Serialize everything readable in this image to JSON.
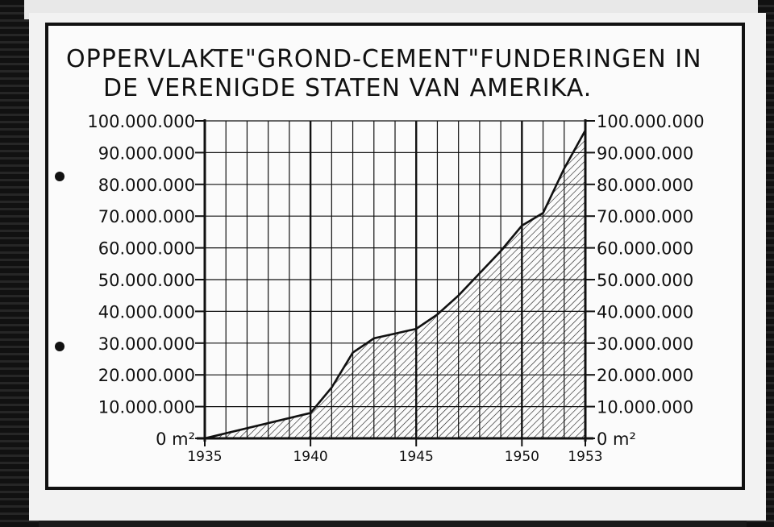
{
  "chart_data": {
    "type": "area",
    "title_lines": [
      "OPPERVLAKTE\"GROND-CEMENT\"FUNDERINGEN IN",
      "DE VERENIGDE STATEN VAN AMERIKA."
    ],
    "x_ticks": [
      "1935",
      "1940",
      "1945",
      "1950",
      "1953"
    ],
    "y_ticks": [
      "0 m²",
      "10.000.000",
      "20.000.000",
      "30.000.000",
      "40.000.000",
      "50.000.000",
      "60.000.000",
      "70.000.000",
      "80.000.000",
      "90.000.000",
      "100.000.000"
    ],
    "xlim": [
      1935,
      1953
    ],
    "ylim": [
      0,
      100000000
    ],
    "unit": "m²",
    "grid": true,
    "x": [
      1935,
      1940,
      1941,
      1942,
      1943,
      1944,
      1945,
      1946,
      1947,
      1948,
      1949,
      1950,
      1951,
      1952,
      1953
    ],
    "values": [
      0,
      8000000,
      16000000,
      27000000,
      31500000,
      33000000,
      34500000,
      39000000,
      45000000,
      52000000,
      59000000,
      67000000,
      71000000,
      85000000,
      97000000
    ],
    "fill": "hatched"
  },
  "colors": {
    "ink": "#111111",
    "paper": "#fbfbfb"
  }
}
